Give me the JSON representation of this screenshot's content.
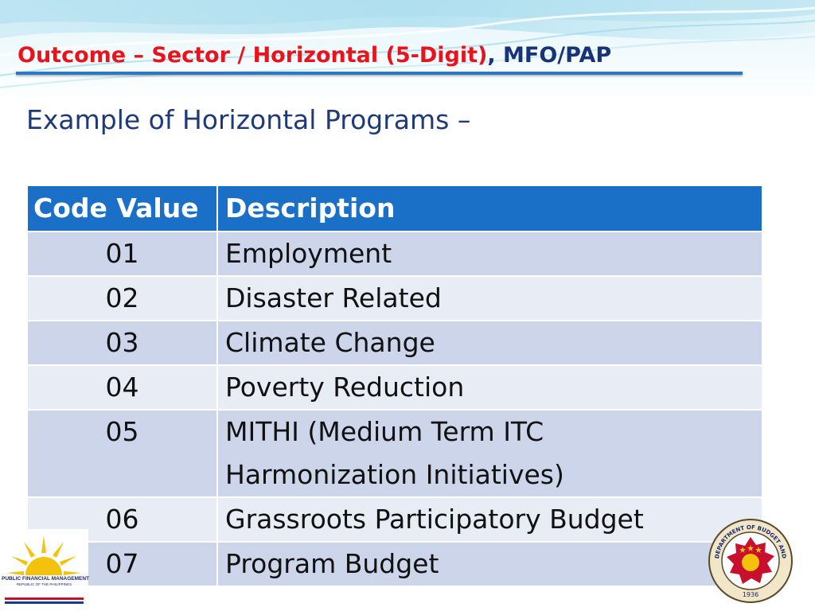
{
  "header": {
    "title_red": "Outcome – Sector / Horizontal (5-Digit)",
    "title_blue": ", MFO/PAP"
  },
  "subtitle": "Example of Horizontal Programs –",
  "table": {
    "columns": [
      "Code Value",
      "Description"
    ],
    "rows": [
      {
        "code": "01",
        "description": [
          "Employment"
        ]
      },
      {
        "code": "02",
        "description": [
          "Disaster Related"
        ]
      },
      {
        "code": "03",
        "description": [
          "Climate Change"
        ]
      },
      {
        "code": "04",
        "description": [
          "Poverty Reduction"
        ]
      },
      {
        "code": "05",
        "description": [
          "MITHI (Medium Term ITC",
          "Harmonization Initiatives)"
        ]
      },
      {
        "code": "06",
        "description": [
          "Grassroots Participatory Budget"
        ]
      },
      {
        "code": "07",
        "description": [
          "Program Budget"
        ]
      }
    ]
  },
  "logos": {
    "pfm_line1": "PUBLIC FINANCIAL MANAGEMENT",
    "pfm_line2": "REPUBLIC OF THE PHILIPPINES",
    "dbm_ring": "DEPARTMENT OF BUDGET AND MANAGEMENT",
    "dbm_year": "1936"
  },
  "colors": {
    "title_red": "#e8131b",
    "title_blue": "#17347a",
    "header_fill": "#1a6fc7",
    "row_dark": "#cdd5ea",
    "row_light": "#e8ecf5"
  }
}
